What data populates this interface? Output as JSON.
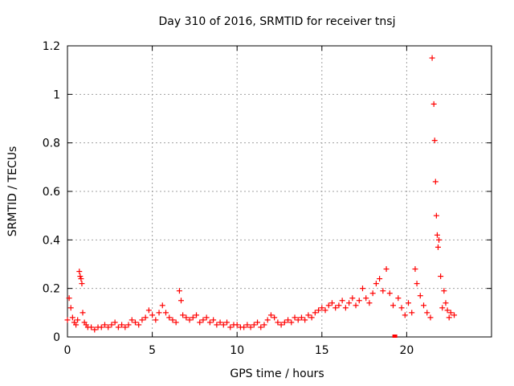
{
  "chart_data": {
    "type": "scatter",
    "title": "Day 310 of 2016, SRMTID for receiver tnsj",
    "xlabel": "GPS time / hours",
    "ylabel": "SRMTID / TECUs",
    "xlim": [
      0,
      25
    ],
    "ylim": [
      0,
      1.2
    ],
    "x_ticks": [
      0,
      5,
      10,
      15,
      20
    ],
    "x_tick_labels": [
      "0",
      "5",
      "10",
      "15",
      "20"
    ],
    "y_ticks": [
      0,
      0.2,
      0.4,
      0.6,
      0.8,
      1.0,
      1.2
    ],
    "y_tick_labels": [
      "0",
      "0.2",
      "0.4",
      "0.6",
      "0.8",
      "1",
      "1.2"
    ],
    "grid": true,
    "marker": "plus",
    "color": "#ff0000",
    "series": [
      {
        "name": "SRMTID",
        "x": [
          0.0,
          0.1,
          0.2,
          0.3,
          0.4,
          0.5,
          0.6,
          0.7,
          0.75,
          0.8,
          0.85,
          0.9,
          1.0,
          1.1,
          1.2,
          1.4,
          1.6,
          1.8,
          2.0,
          2.2,
          2.4,
          2.6,
          2.8,
          3.0,
          3.2,
          3.4,
          3.6,
          3.8,
          4.0,
          4.2,
          4.4,
          4.6,
          4.8,
          5.0,
          5.2,
          5.4,
          5.6,
          5.8,
          6.0,
          6.2,
          6.4,
          6.6,
          6.7,
          6.8,
          7.0,
          7.2,
          7.4,
          7.6,
          7.8,
          8.0,
          8.2,
          8.4,
          8.6,
          8.8,
          9.0,
          9.2,
          9.4,
          9.6,
          9.8,
          10.0,
          10.2,
          10.4,
          10.6,
          10.8,
          11.0,
          11.2,
          11.4,
          11.6,
          11.8,
          12.0,
          12.2,
          12.4,
          12.6,
          12.8,
          13.0,
          13.2,
          13.4,
          13.6,
          13.8,
          14.0,
          14.2,
          14.4,
          14.6,
          14.8,
          15.0,
          15.2,
          15.4,
          15.6,
          15.8,
          16.0,
          16.2,
          16.4,
          16.6,
          16.8,
          17.0,
          17.2,
          17.4,
          17.6,
          17.8,
          18.0,
          18.2,
          18.4,
          18.6,
          18.8,
          19.0,
          19.2,
          19.3,
          19.5,
          19.7,
          19.9,
          20.1,
          20.3,
          20.5,
          20.6,
          20.8,
          21.0,
          21.2,
          21.4,
          21.5,
          21.6,
          21.65,
          21.7,
          21.75,
          21.8,
          21.85,
          21.9,
          22.0,
          22.1,
          22.2,
          22.3,
          22.4,
          22.5,
          22.6,
          22.8
        ],
        "y": [
          0.07,
          0.16,
          0.12,
          0.08,
          0.06,
          0.05,
          0.07,
          0.27,
          0.25,
          0.24,
          0.22,
          0.1,
          0.06,
          0.05,
          0.04,
          0.04,
          0.03,
          0.04,
          0.04,
          0.05,
          0.04,
          0.05,
          0.06,
          0.04,
          0.05,
          0.04,
          0.05,
          0.07,
          0.06,
          0.05,
          0.07,
          0.08,
          0.11,
          0.09,
          0.07,
          0.1,
          0.13,
          0.1,
          0.08,
          0.07,
          0.06,
          0.19,
          0.15,
          0.09,
          0.08,
          0.07,
          0.08,
          0.09,
          0.06,
          0.07,
          0.08,
          0.06,
          0.07,
          0.05,
          0.06,
          0.05,
          0.06,
          0.04,
          0.05,
          0.05,
          0.04,
          0.04,
          0.05,
          0.04,
          0.05,
          0.06,
          0.04,
          0.05,
          0.07,
          0.09,
          0.08,
          0.06,
          0.05,
          0.06,
          0.07,
          0.06,
          0.08,
          0.07,
          0.08,
          0.07,
          0.09,
          0.08,
          0.1,
          0.11,
          0.12,
          0.11,
          0.13,
          0.14,
          0.12,
          0.13,
          0.15,
          0.12,
          0.14,
          0.16,
          0.13,
          0.15,
          0.2,
          0.16,
          0.14,
          0.18,
          0.22,
          0.24,
          0.19,
          0.28,
          0.18,
          0.13,
          0.0,
          0.16,
          0.12,
          0.09,
          0.14,
          0.1,
          0.28,
          0.22,
          0.17,
          0.13,
          0.1,
          0.08,
          1.15,
          0.96,
          0.81,
          0.64,
          0.5,
          0.42,
          0.37,
          0.4,
          0.25,
          0.12,
          0.19,
          0.14,
          0.11,
          0.08,
          0.1,
          0.09
        ]
      }
    ]
  }
}
